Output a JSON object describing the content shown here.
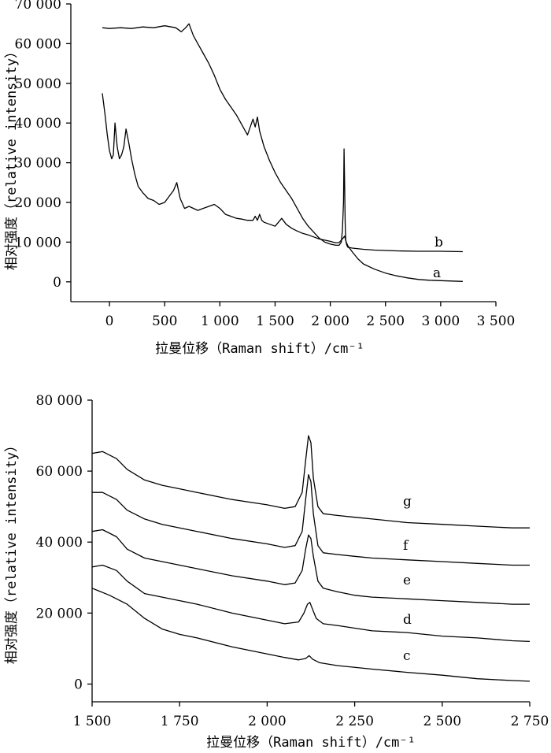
{
  "chart_data": [
    {
      "type": "line",
      "xlabel": "拉曼位移（Raman shift）/cm⁻¹",
      "ylabel": "相对强度（relative intensity）",
      "xlim": [
        -350,
        3500
      ],
      "ylim": [
        -5000,
        70000
      ],
      "xticks": [
        0,
        500,
        1000,
        1500,
        2000,
        2500,
        3000,
        3500
      ],
      "xtick_labels": [
        "0",
        "500",
        "1 000",
        "1 500",
        "2 000",
        "2 500",
        "3 000",
        "3 500"
      ],
      "yticks": [
        0,
        10000,
        20000,
        30000,
        40000,
        50000,
        60000,
        70000
      ],
      "ytick_labels": [
        "0",
        "10 000",
        "20 000",
        "30 000",
        "40 000",
        "50 000",
        "60 000",
        "70 000"
      ],
      "series": [
        {
          "name": "a",
          "x": [
            -65,
            -40,
            -20,
            0,
            20,
            35,
            50,
            70,
            90,
            110,
            130,
            150,
            175,
            200,
            230,
            260,
            300,
            350,
            400,
            450,
            500,
            540,
            580,
            610,
            640,
            680,
            720,
            800,
            900,
            950,
            1000,
            1050,
            1100,
            1150,
            1200,
            1250,
            1300,
            1320,
            1340,
            1360,
            1380,
            1400,
            1450,
            1500,
            1530,
            1560,
            1600,
            1650,
            1700,
            1750,
            1800,
            1850,
            1900,
            1950,
            2000,
            2050,
            2080,
            2110,
            2130,
            2145,
            2160,
            2200,
            2250,
            2300,
            2400,
            2500,
            2600,
            2700,
            2800,
            2900,
            3000,
            3100,
            3200
          ],
          "y": [
            47500,
            42000,
            37000,
            33000,
            31000,
            32000,
            40000,
            34000,
            31000,
            32000,
            34000,
            38500,
            35000,
            31000,
            27000,
            24000,
            22500,
            21000,
            20500,
            19500,
            20000,
            21500,
            23000,
            25000,
            21000,
            18500,
            19000,
            18000,
            19000,
            19500,
            18500,
            17000,
            16500,
            16000,
            15800,
            15500,
            15500,
            16500,
            15500,
            17000,
            15500,
            15000,
            14500,
            14000,
            15000,
            16000,
            14500,
            13500,
            12800,
            12200,
            11800,
            11300,
            10800,
            10500,
            10200,
            9800,
            9900,
            10800,
            11500,
            10000,
            9000,
            7500,
            5800,
            4500,
            3200,
            2200,
            1500,
            1000,
            600,
            400,
            300,
            200,
            100
          ]
        },
        {
          "name": "b",
          "x": [
            -65,
            0,
            100,
            200,
            300,
            400,
            500,
            600,
            650,
            690,
            720,
            740,
            760,
            800,
            850,
            900,
            950,
            1000,
            1050,
            1100,
            1150,
            1200,
            1250,
            1300,
            1320,
            1340,
            1360,
            1400,
            1450,
            1500,
            1550,
            1600,
            1650,
            1700,
            1750,
            1800,
            1850,
            1900,
            1950,
            2000,
            2050,
            2080,
            2100,
            2110,
            2120,
            2125,
            2130,
            2135,
            2140,
            2150,
            2160,
            2200,
            2300,
            2400,
            2500,
            2600,
            2800,
            3000,
            3200
          ],
          "y": [
            64000,
            63800,
            64000,
            63800,
            64200,
            64000,
            64500,
            64000,
            63000,
            64000,
            65000,
            63500,
            62000,
            60000,
            57500,
            55000,
            52000,
            48500,
            46000,
            44000,
            42000,
            39500,
            37000,
            41000,
            39000,
            41500,
            38000,
            34000,
            30500,
            27500,
            25000,
            23000,
            21000,
            18500,
            16000,
            14000,
            12500,
            11000,
            10000,
            9500,
            9200,
            9200,
            10000,
            13000,
            20000,
            33500,
            25000,
            15000,
            10500,
            9200,
            8700,
            8500,
            8200,
            8000,
            7900,
            7800,
            7700,
            7700,
            7600
          ]
        }
      ],
      "annotations": [
        "b",
        "a"
      ]
    },
    {
      "type": "line",
      "xlabel": "拉曼位移（Raman shift）/cm⁻¹",
      "ylabel": "相对强度（relative intensity）",
      "xlim": [
        1500,
        2750
      ],
      "ylim": [
        -5000,
        80000
      ],
      "xticks": [
        1500,
        1750,
        2000,
        2250,
        2500,
        2750
      ],
      "xtick_labels": [
        "1 500",
        "1 750",
        "2 000",
        "2 250",
        "2 500",
        "2 750"
      ],
      "yticks": [
        0,
        20000,
        40000,
        60000,
        80000
      ],
      "ytick_labels": [
        "0",
        "20 000",
        "40 000",
        "60 000",
        "80 000"
      ],
      "series": [
        {
          "name": "c",
          "x": [
            1500,
            1550,
            1600,
            1650,
            1700,
            1750,
            1800,
            1900,
            2000,
            2050,
            2090,
            2110,
            2120,
            2130,
            2150,
            2200,
            2300,
            2400,
            2500,
            2600,
            2700,
            2750
          ],
          "y": [
            27000,
            25000,
            22500,
            18500,
            15500,
            14000,
            13000,
            10500,
            8500,
            7500,
            6800,
            7200,
            8000,
            7000,
            6000,
            5200,
            4200,
            3300,
            2500,
            1500,
            1000,
            800
          ]
        },
        {
          "name": "d",
          "x": [
            1500,
            1530,
            1570,
            1600,
            1650,
            1700,
            1750,
            1800,
            1900,
            2000,
            2050,
            2090,
            2105,
            2115,
            2122,
            2130,
            2140,
            2160,
            2200,
            2300,
            2400,
            2500,
            2600,
            2700,
            2750
          ],
          "y": [
            33000,
            33500,
            32000,
            29000,
            25500,
            24500,
            23500,
            22500,
            20000,
            18000,
            17000,
            17500,
            20000,
            22500,
            23000,
            21000,
            18500,
            17000,
            16500,
            15000,
            14500,
            13500,
            13000,
            12200,
            12000
          ]
        },
        {
          "name": "e",
          "x": [
            1500,
            1530,
            1570,
            1600,
            1650,
            1700,
            1750,
            1800,
            1900,
            2000,
            2050,
            2080,
            2100,
            2110,
            2118,
            2125,
            2132,
            2145,
            2160,
            2200,
            2250,
            2300,
            2400,
            2500,
            2600,
            2700,
            2750
          ],
          "y": [
            43000,
            43500,
            41500,
            38000,
            35500,
            34500,
            33500,
            32500,
            30500,
            29000,
            28000,
            28500,
            32000,
            38000,
            42000,
            41000,
            36000,
            29000,
            27000,
            26000,
            25000,
            24500,
            24000,
            23500,
            23000,
            22500,
            22500
          ]
        },
        {
          "name": "f",
          "x": [
            1500,
            1530,
            1570,
            1600,
            1650,
            1700,
            1750,
            1800,
            1900,
            2000,
            2050,
            2080,
            2100,
            2110,
            2118,
            2125,
            2132,
            2145,
            2160,
            2200,
            2250,
            2300,
            2400,
            2500,
            2600,
            2700,
            2750
          ],
          "y": [
            54000,
            54000,
            52000,
            49000,
            46500,
            45000,
            44000,
            43000,
            41000,
            39500,
            38500,
            39000,
            43000,
            52000,
            59000,
            57000,
            48000,
            39000,
            37000,
            36500,
            36000,
            35500,
            35000,
            34500,
            34000,
            33500,
            33500
          ]
        },
        {
          "name": "g",
          "x": [
            1500,
            1530,
            1570,
            1600,
            1650,
            1700,
            1750,
            1800,
            1900,
            2000,
            2050,
            2080,
            2100,
            2110,
            2118,
            2125,
            2132,
            2145,
            2160,
            2200,
            2250,
            2300,
            2400,
            2500,
            2600,
            2700,
            2750
          ],
          "y": [
            65000,
            65500,
            63500,
            60500,
            57500,
            56000,
            55000,
            54000,
            52000,
            50500,
            49500,
            50000,
            54000,
            63000,
            70000,
            68000,
            58000,
            50000,
            48000,
            47500,
            47000,
            46500,
            45500,
            45000,
            44500,
            44000,
            44000
          ]
        }
      ],
      "annotations": [
        "g",
        "f",
        "e",
        "d",
        "c"
      ]
    }
  ]
}
